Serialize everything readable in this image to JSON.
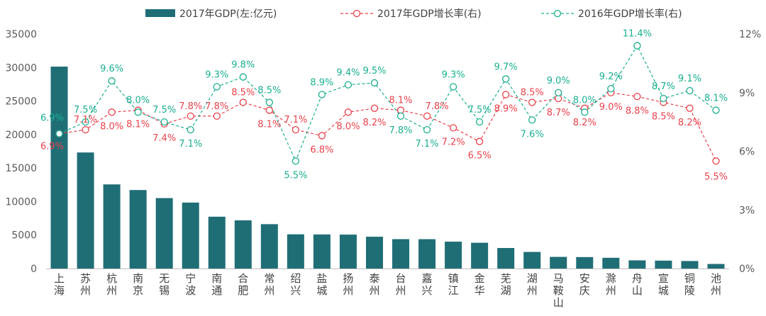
{
  "chart_data": {
    "type": "bar+line",
    "categories": [
      "上海",
      "苏州",
      "杭州",
      "南京",
      "无锡",
      "宁波",
      "南通",
      "合肥",
      "常州",
      "绍兴",
      "盐城",
      "扬州",
      "泰州",
      "台州",
      "嘉兴",
      "镇江",
      "金华",
      "芜湖",
      "湖州",
      "马鞍山",
      "安庆",
      "滁州",
      "舟山",
      "宣城",
      "铜陵",
      "池州"
    ],
    "series": [
      {
        "name": "2017年GDP(左:亿元)",
        "type": "bar",
        "axis": "left",
        "color": "#1f6e76",
        "values": [
          30133,
          17320,
          12556,
          11715,
          10512,
          9842,
          7735,
          7191,
          6622,
          5108,
          5083,
          5065,
          4745,
          4388,
          4380,
          4010,
          3849,
          3065,
          2476,
          1738,
          1708,
          1604,
          1220,
          1180,
          1122,
          684
        ]
      },
      {
        "name": "2017年GDP增长率(右)",
        "type": "line",
        "axis": "right",
        "color": "#e8414b",
        "values": [
          6.9,
          7.1,
          8.0,
          8.1,
          7.4,
          7.8,
          7.8,
          8.5,
          8.1,
          7.1,
          6.8,
          8.0,
          8.2,
          8.1,
          7.8,
          7.2,
          6.5,
          8.9,
          8.5,
          8.7,
          8.2,
          9.0,
          8.8,
          8.5,
          8.2,
          5.5
        ],
        "labels": [
          "6.9%",
          "7.1%",
          "8.0%",
          "8.1%",
          "7.4%",
          "7.8%",
          "7.8%",
          "8.5%",
          "8.1%",
          "7.1%",
          "6.8%",
          "8.0%",
          "8.2%",
          "8.1%",
          "7.8%",
          "7.2%",
          "6.5%",
          "8.9%",
          "8.5%",
          "8.7%",
          "8.2%",
          "9.0%",
          "8.8%",
          "8.5%",
          "8.2%",
          "5.5%"
        ]
      },
      {
        "name": "2016年GDP增长率(右)",
        "type": "line",
        "axis": "right",
        "color": "#1aaf90",
        "values": [
          6.9,
          7.5,
          9.6,
          8.0,
          7.5,
          7.1,
          9.3,
          9.8,
          8.5,
          5.5,
          8.9,
          9.4,
          9.5,
          7.8,
          7.1,
          9.3,
          7.5,
          9.7,
          7.6,
          9.0,
          8.0,
          9.2,
          11.4,
          8.7,
          9.1,
          8.1
        ],
        "labels": [
          "6.9%",
          "7.5%",
          "9.6%",
          "8.0%",
          "7.5%",
          "7.1%",
          "9.3%",
          "9.8%",
          "8.5%",
          "5.5%",
          "8.9%",
          "9.4%",
          "9.5%",
          "7.8%",
          "7.1%",
          "9.3%",
          "7.5%",
          "9.7%",
          "7.6%",
          "9.0%",
          "8.0%",
          "9.2%",
          "11.4%",
          "8.7%",
          "9.1%",
          "8.1%"
        ]
      }
    ],
    "left_axis": {
      "ylim": [
        0,
        35000
      ],
      "ticks": [
        "0",
        "5000",
        "10000",
        "15000",
        "20000",
        "25000",
        "30000",
        "35000"
      ]
    },
    "right_axis": {
      "ylim": [
        0,
        12
      ],
      "ticks": [
        "0%",
        "3%",
        "6%",
        "9%",
        "12%"
      ]
    },
    "legend_position": "top"
  }
}
